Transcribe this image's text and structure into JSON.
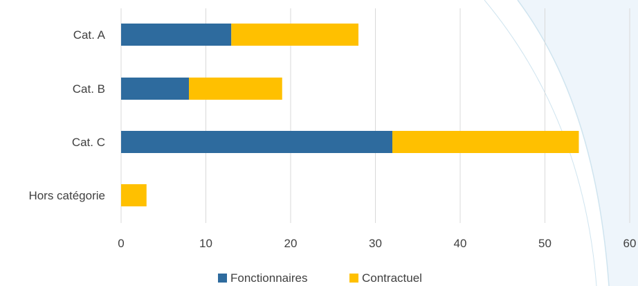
{
  "chart_data": {
    "type": "bar",
    "orientation": "horizontal",
    "stacked": true,
    "title": "",
    "xlabel": "",
    "ylabel": "",
    "categories": [
      "Cat. A",
      "Cat. B",
      "Cat. C",
      "Hors catégorie"
    ],
    "series": [
      {
        "name": "Fonctionnaires",
        "color": "#2e6b9e",
        "values": [
          13,
          8,
          32,
          0
        ]
      },
      {
        "name": "Contractuel",
        "color": "#ffc000",
        "values": [
          15,
          11,
          22,
          3
        ]
      }
    ],
    "xlim": [
      0,
      60
    ],
    "xticks": [
      0,
      10,
      20,
      30,
      40,
      50,
      60
    ],
    "grid": true,
    "legend_position": "bottom"
  },
  "colors": {
    "gridline": "#d9d9d9",
    "background_accent": "#eef5fb",
    "background_accent_line": "#cfe4ef"
  }
}
